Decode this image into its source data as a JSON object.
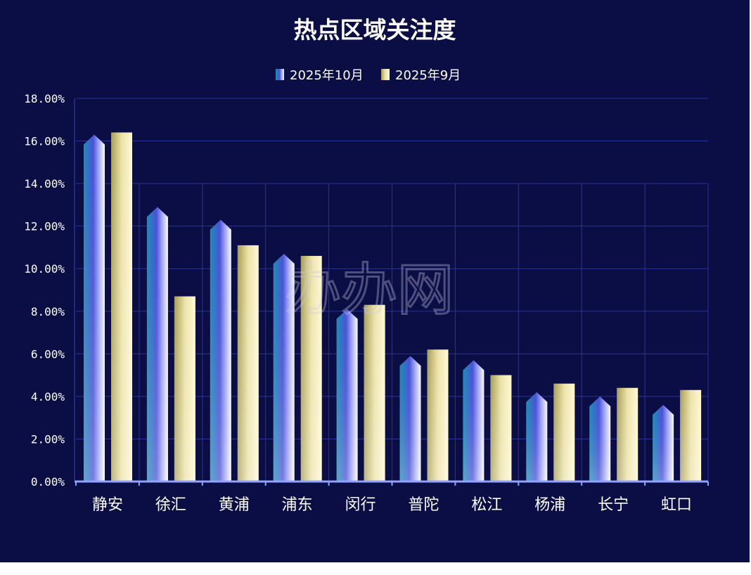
{
  "chart_data": {
    "type": "bar",
    "title": "热点区域关注度",
    "categories": [
      "静安",
      "徐汇",
      "黄浦",
      "浦东",
      "闵行",
      "普陀",
      "松江",
      "杨浦",
      "长宁",
      "虹口"
    ],
    "series": [
      {
        "name": "2025年10月",
        "values": [
          16.1,
          12.7,
          12.1,
          10.5,
          7.9,
          5.7,
          5.5,
          4.0,
          3.8,
          3.4
        ],
        "color": "#5a5ed8"
      },
      {
        "name": "2025年9月",
        "values": [
          16.4,
          8.7,
          11.1,
          10.6,
          8.3,
          6.2,
          5.0,
          4.6,
          4.4,
          4.3
        ],
        "color": "#e6dca0"
      }
    ],
    "y_ticks": [
      "0.00%",
      "2.00%",
      "4.00%",
      "6.00%",
      "8.00%",
      "10.00%",
      "12.00%",
      "14.00%",
      "16.00%",
      "18.00%"
    ],
    "ylim": [
      0,
      18
    ],
    "y_unit": "percent",
    "grid": true,
    "legend_position": "top-center",
    "background": "#0b0d45",
    "gridline_color": "#2a3399",
    "watermark": "办办网"
  }
}
